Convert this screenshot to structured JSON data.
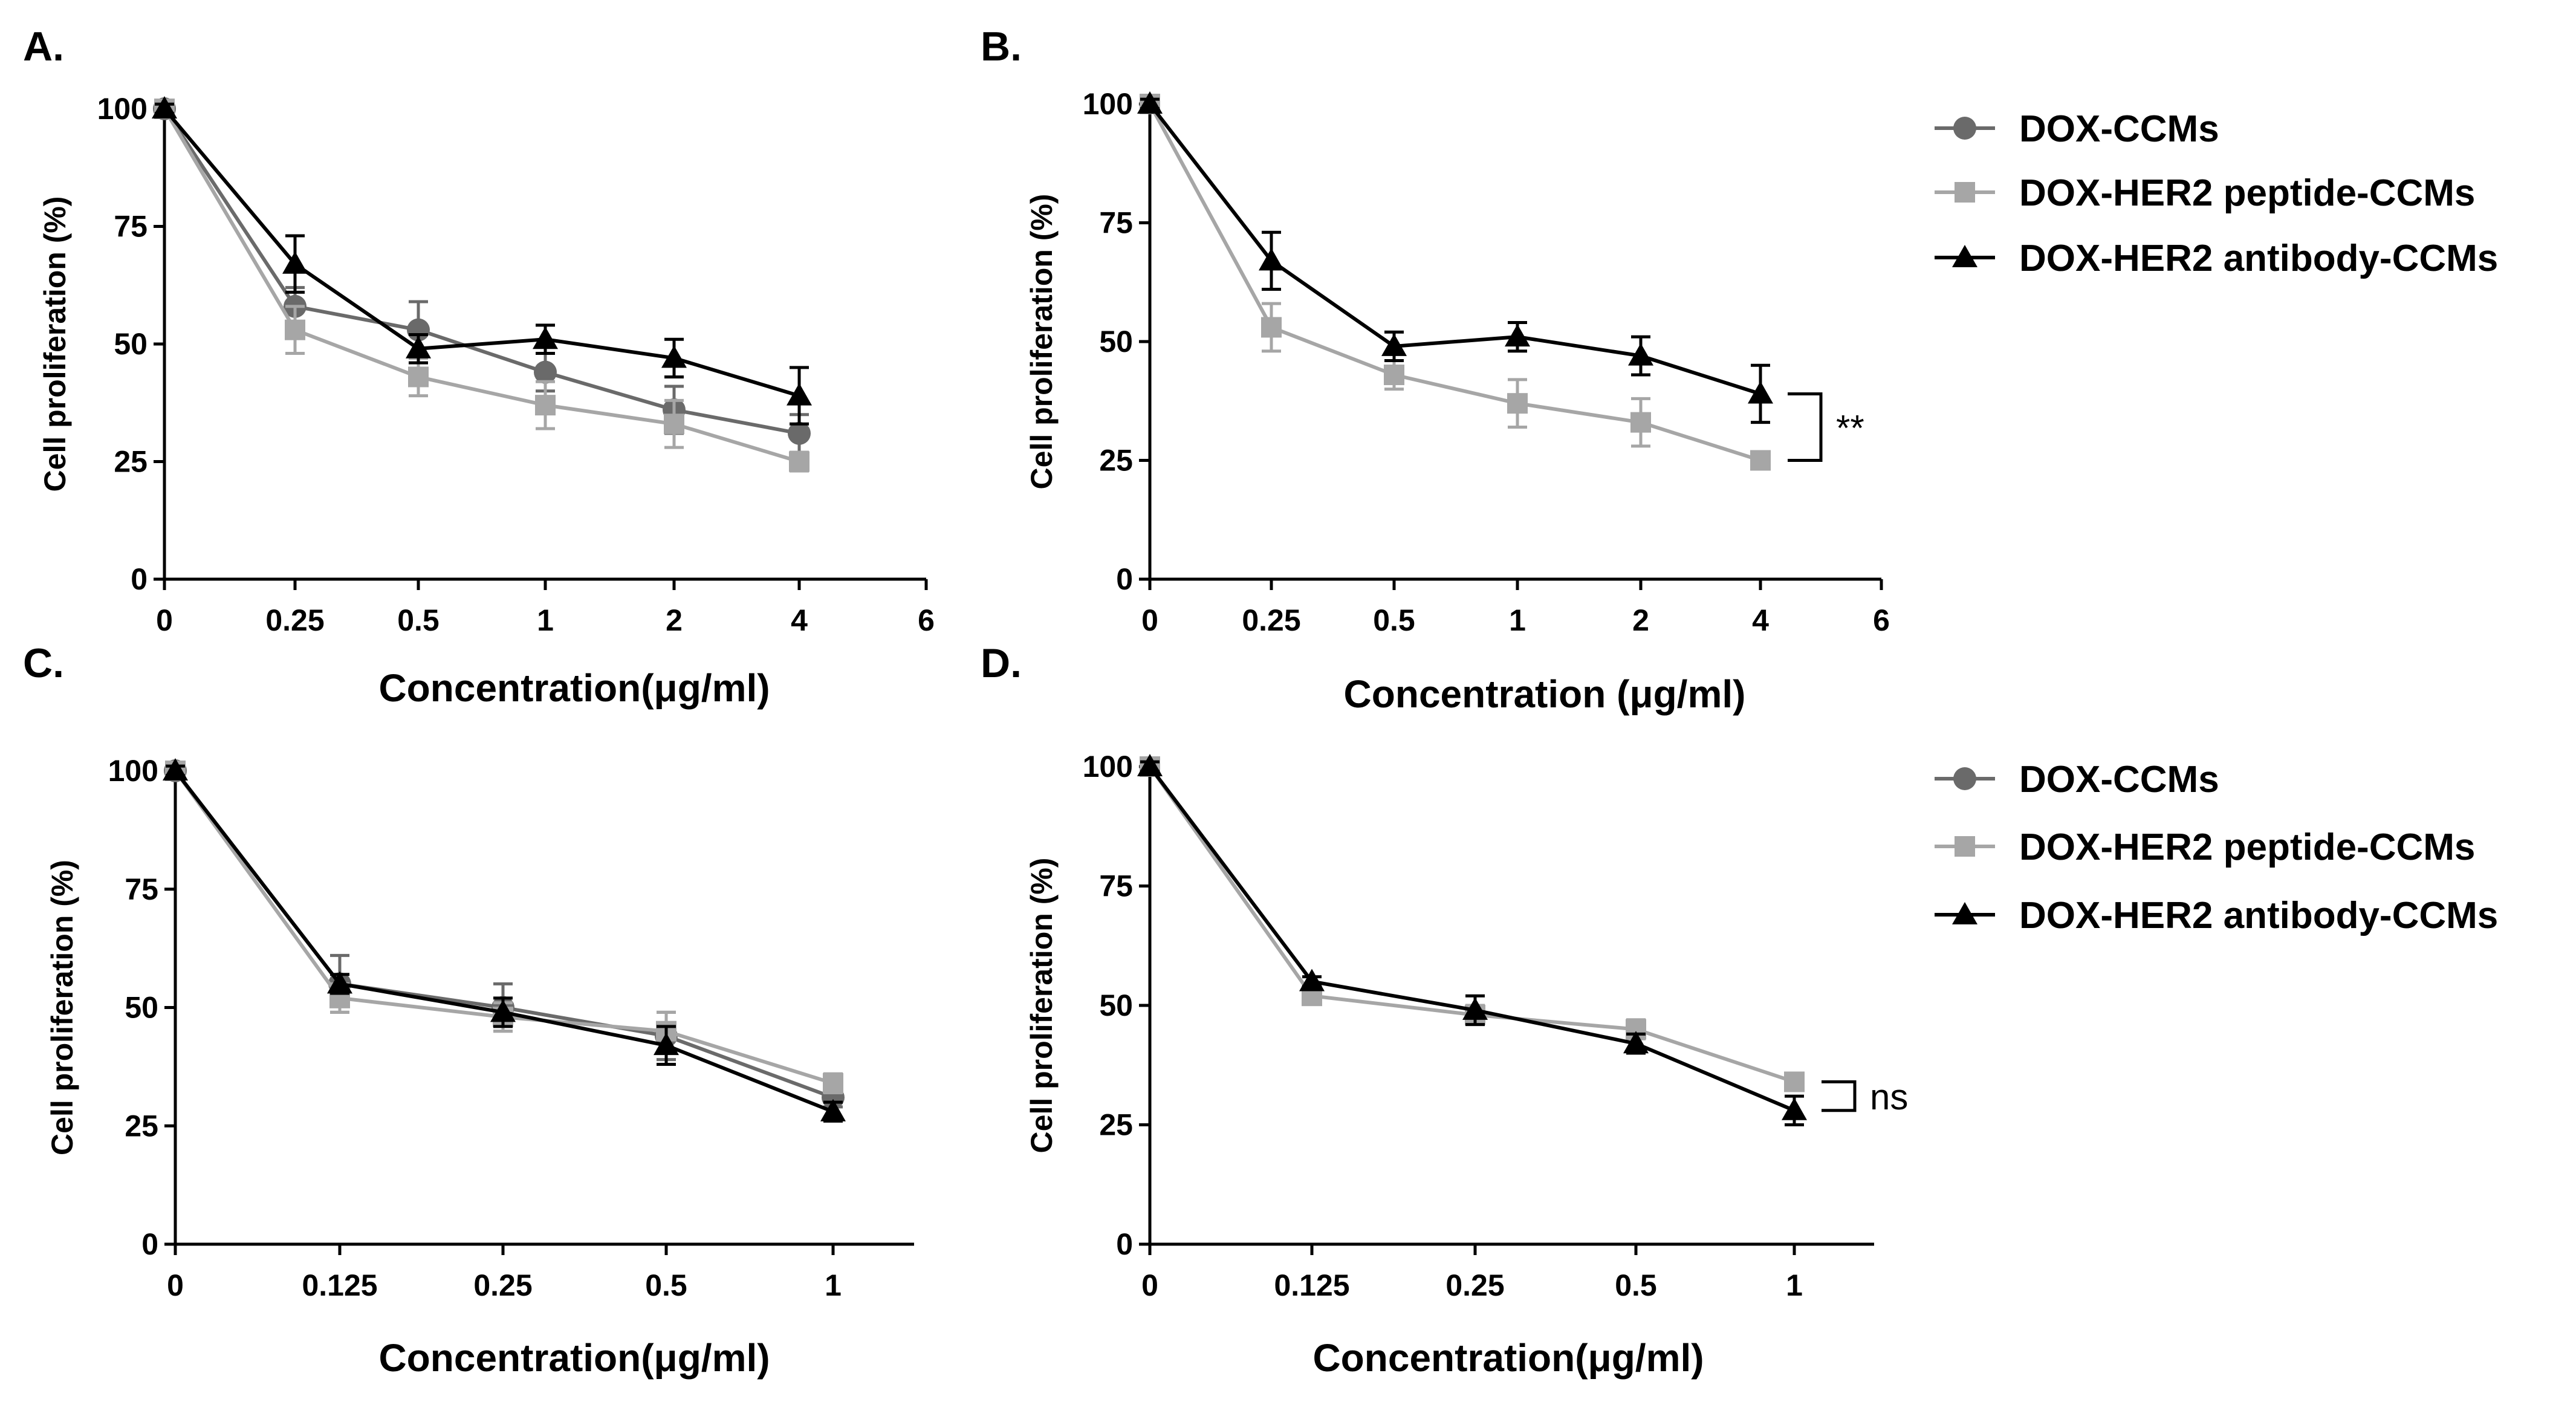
{
  "figure": {
    "legends": [
      {
        "entries": [
          {
            "label": "DOX-CCMs",
            "color": "#6a6a6a",
            "marker": "circle"
          },
          {
            "label": "DOX-HER2 peptide-CCMs",
            "color": "#a6a6a6",
            "marker": "square"
          },
          {
            "label": "DOX-HER2 antibody-CCMs",
            "color": "#000000",
            "marker": "triangle"
          }
        ]
      },
      {
        "entries": [
          {
            "label": "DOX-CCMs",
            "color": "#6a6a6a",
            "marker": "circle"
          },
          {
            "label": "DOX-HER2 peptide-CCMs",
            "color": "#a6a6a6",
            "marker": "square"
          },
          {
            "label": "DOX-HER2 antibody-CCMs",
            "color": "#000000",
            "marker": "triangle"
          }
        ]
      }
    ]
  },
  "chart_data": [
    {
      "panel": "A.",
      "type": "line",
      "xlabel": "Concentration(μg/ml)",
      "ylabel": "Cell proliferation (%)",
      "x_ticks": [
        "0",
        "0.25",
        "0.5",
        "1",
        "2",
        "4",
        "6"
      ],
      "y_ticks": [
        "0",
        "25",
        "50",
        "75",
        "100"
      ],
      "ylim": [
        0,
        100
      ],
      "categories": [
        "0",
        "0.25",
        "0.5",
        "1",
        "2",
        "4"
      ],
      "series": [
        {
          "name": "DOX-CCMs",
          "color": "#6a6a6a",
          "marker": "circle",
          "values": [
            100,
            58,
            53,
            44,
            36,
            31
          ],
          "errors": [
            1,
            4,
            6,
            4,
            5,
            4
          ]
        },
        {
          "name": "DOX-HER2 peptide-CCMs",
          "color": "#a6a6a6",
          "marker": "square",
          "values": [
            100,
            53,
            43,
            37,
            33,
            25
          ],
          "errors": [
            1,
            5,
            4,
            5,
            5,
            2
          ]
        },
        {
          "name": "DOX-HER2 antibody-CCMs",
          "color": "#000000",
          "marker": "triangle",
          "values": [
            100,
            67,
            49,
            51,
            47,
            39
          ],
          "errors": [
            1,
            6,
            3,
            3,
            4,
            6
          ]
        }
      ]
    },
    {
      "panel": "B.",
      "type": "line",
      "xlabel": "Concentration (μg/ml)",
      "ylabel": "Cell proliferation (%)",
      "x_ticks": [
        "0",
        "0.25",
        "0.5",
        "1",
        "2",
        "4",
        "6"
      ],
      "y_ticks": [
        "0",
        "25",
        "50",
        "75",
        "100"
      ],
      "ylim": [
        0,
        100
      ],
      "categories": [
        "0",
        "0.25",
        "0.5",
        "1",
        "2",
        "4"
      ],
      "significance": "**",
      "series": [
        {
          "name": "DOX-HER2 peptide-CCMs",
          "color": "#a6a6a6",
          "marker": "square",
          "values": [
            100,
            53,
            43,
            37,
            33,
            25
          ],
          "errors": [
            1,
            5,
            3,
            5,
            5,
            1
          ]
        },
        {
          "name": "DOX-HER2 antibody-CCMs",
          "color": "#000000",
          "marker": "triangle",
          "values": [
            100,
            67,
            49,
            51,
            47,
            39
          ],
          "errors": [
            1,
            6,
            3,
            3,
            4,
            6
          ]
        }
      ]
    },
    {
      "panel": "C.",
      "type": "line",
      "xlabel": "Concentration(μg/ml)",
      "ylabel": "Cell proliferation (%)",
      "x_ticks": [
        "0",
        "0.125",
        "0.25",
        "0.5",
        "1"
      ],
      "y_ticks": [
        "0",
        "25",
        "50",
        "75",
        "100"
      ],
      "ylim": [
        0,
        100
      ],
      "categories": [
        "0",
        "0.125",
        "0.25",
        "0.5",
        "1"
      ],
      "series": [
        {
          "name": "DOX-CCMs",
          "color": "#6a6a6a",
          "marker": "circle",
          "values": [
            100,
            55,
            50,
            44,
            31
          ],
          "errors": [
            1,
            6,
            5,
            5,
            2
          ]
        },
        {
          "name": "DOX-HER2 peptide-CCMs",
          "color": "#a6a6a6",
          "marker": "square",
          "values": [
            100,
            52,
            48,
            45,
            34
          ],
          "errors": [
            1,
            3,
            3,
            4,
            2
          ]
        },
        {
          "name": "DOX-HER2 antibody-CCMs",
          "color": "#000000",
          "marker": "triangle",
          "values": [
            100,
            55,
            49,
            42,
            28
          ],
          "errors": [
            1,
            2,
            3,
            4,
            2
          ]
        }
      ]
    },
    {
      "panel": "D.",
      "type": "line",
      "xlabel": "Concentration(μg/ml)",
      "ylabel": "Cell proliferation (%)",
      "x_ticks": [
        "0",
        "0.125",
        "0.25",
        "0.5",
        "1"
      ],
      "y_ticks": [
        "0",
        "25",
        "50",
        "75",
        "100"
      ],
      "ylim": [
        0,
        100
      ],
      "categories": [
        "0",
        "0.125",
        "0.25",
        "0.5",
        "1"
      ],
      "significance": "ns",
      "series": [
        {
          "name": "DOX-HER2 peptide-CCMs",
          "color": "#a6a6a6",
          "marker": "square",
          "values": [
            100,
            52,
            48,
            45,
            34
          ],
          "errors": [
            1,
            1,
            2,
            2,
            1
          ]
        },
        {
          "name": "DOX-HER2 antibody-CCMs",
          "color": "#000000",
          "marker": "triangle",
          "values": [
            100,
            55,
            49,
            42,
            28
          ],
          "errors": [
            1,
            1,
            3,
            2,
            3
          ]
        }
      ]
    }
  ]
}
